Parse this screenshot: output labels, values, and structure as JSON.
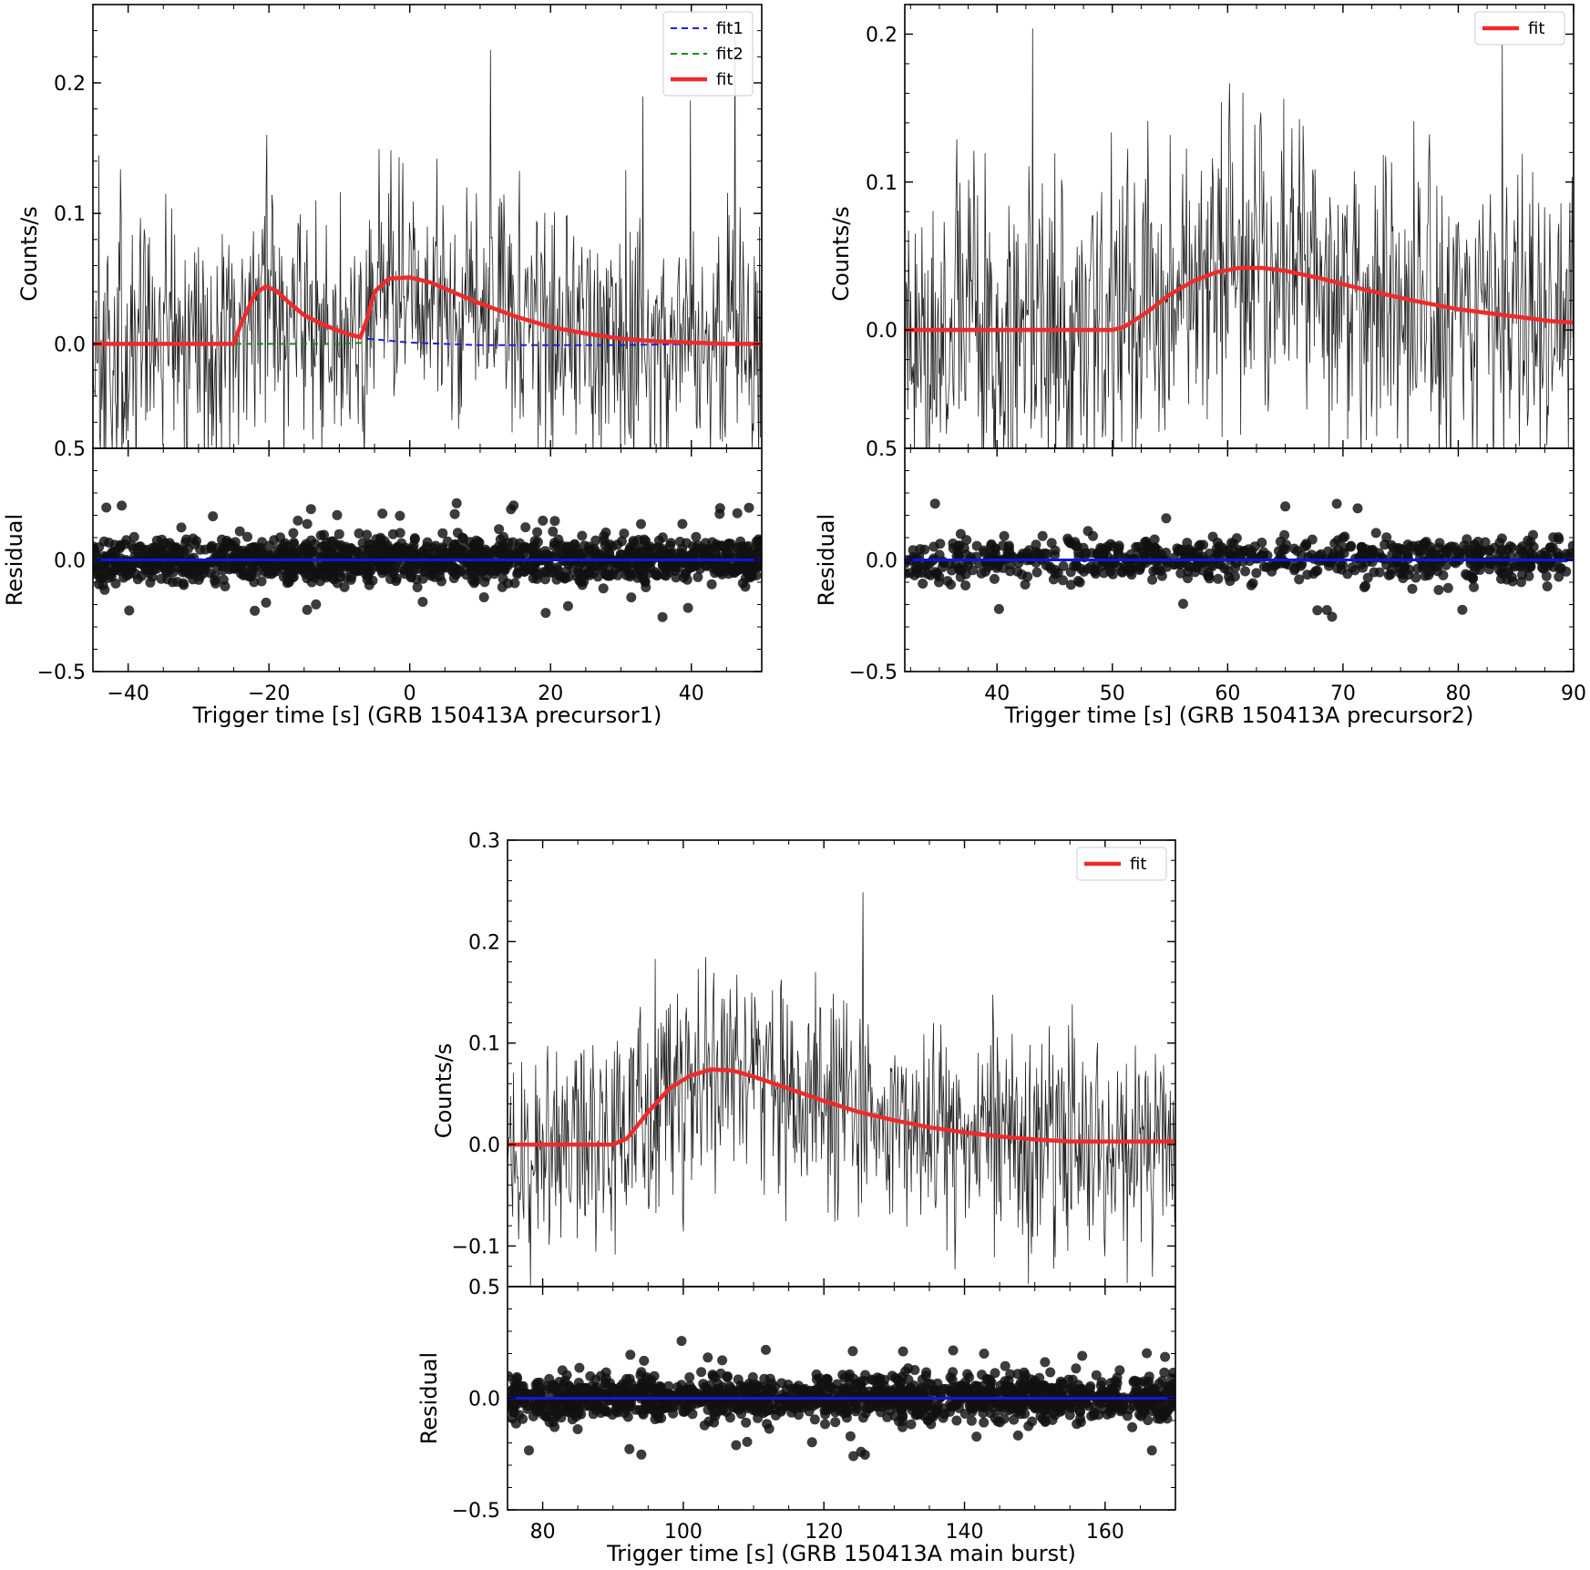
{
  "chart_data": [
    {
      "type": "line",
      "id": "precursor1",
      "xlabel": "Trigger time [s] (GRB 150413A precursor1)",
      "ylabel": "Counts/s",
      "residual_label": "Residual",
      "xlim": [
        -45,
        50
      ],
      "ylim": [
        -0.08,
        0.26
      ],
      "residual_ylim": [
        -0.5,
        0.5
      ],
      "x_ticks": [
        -40,
        -20,
        0,
        20,
        40
      ],
      "x_tick_labels": [
        "−40",
        "−20",
        "0",
        "20",
        "40"
      ],
      "y_ticks": [
        0.0,
        0.1,
        0.2
      ],
      "y_tick_labels": [
        "0.0",
        "0.1",
        "0.2"
      ],
      "y_bottom_label": "0.5",
      "residual_ticks": [
        0.0,
        -0.5
      ],
      "residual_tick_labels": [
        "0.0",
        "−0.5"
      ],
      "legend": {
        "position": "top-right",
        "entries": [
          "fit1",
          "fit2",
          "fit"
        ]
      },
      "noise": {
        "amplitude": 0.07,
        "spike_max": 0.25
      },
      "series": [
        {
          "name": "fit1",
          "style": "dashed",
          "color": "#1f1fe0",
          "x": [
            -6,
            0,
            10,
            20,
            30,
            40,
            50
          ],
          "y": [
            0.004,
            0.001,
            -0.001,
            -0.001,
            -0.001,
            0.0,
            0.0
          ]
        },
        {
          "name": "fit2",
          "style": "dashed",
          "color": "#1a8a1a",
          "x": [
            -45,
            -25,
            -20,
            -15,
            -10,
            -6
          ],
          "y": [
            0.0,
            0.0,
            0.0,
            0.0,
            0.0,
            0.001
          ]
        },
        {
          "name": "fit",
          "style": "solid",
          "color": "#ee2b2b",
          "x": [
            -45,
            -25,
            -24,
            -22,
            -20.5,
            -19,
            -17,
            -15,
            -12,
            -9,
            -7,
            -6,
            -5,
            -3,
            0,
            3,
            6,
            10,
            15,
            20,
            25,
            30,
            35,
            40,
            45,
            50
          ],
          "y": [
            0.0,
            0.0,
            0.015,
            0.038,
            0.044,
            0.041,
            0.031,
            0.022,
            0.014,
            0.008,
            0.005,
            0.02,
            0.04,
            0.05,
            0.051,
            0.047,
            0.04,
            0.031,
            0.021,
            0.013,
            0.008,
            0.004,
            0.002,
            0.001,
            0.0,
            0.0
          ]
        },
        {
          "name": "residual-zero",
          "style": "solid",
          "color": "#1515e6",
          "x": [
            -45,
            50
          ],
          "y": [
            0.0,
            0.0
          ]
        }
      ]
    },
    {
      "type": "line",
      "id": "precursor2",
      "xlabel": "Trigger time [s] (GRB 150413A precursor2)",
      "ylabel": "Counts/s",
      "residual_label": "Residual",
      "xlim": [
        32,
        90
      ],
      "ylim": [
        -0.08,
        0.22
      ],
      "residual_ylim": [
        -0.5,
        0.5
      ],
      "x_ticks": [
        40,
        50,
        60,
        70,
        80,
        90
      ],
      "x_tick_labels": [
        "40",
        "50",
        "60",
        "70",
        "80",
        "90"
      ],
      "y_ticks": [
        0.0,
        0.1,
        0.2
      ],
      "y_tick_labels": [
        "0.0",
        "0.1",
        "0.2"
      ],
      "y_bottom_label": "0.5",
      "residual_ticks": [
        0.0,
        -0.5
      ],
      "residual_tick_labels": [
        "0.0",
        "−0.5"
      ],
      "legend": {
        "position": "top-right",
        "entries": [
          "fit"
        ]
      },
      "noise": {
        "amplitude": 0.075,
        "spike_max": 0.22
      },
      "series": [
        {
          "name": "fit",
          "style": "solid",
          "color": "#ee2b2b",
          "x": [
            32,
            40,
            50,
            51,
            53,
            55,
            57,
            59,
            61,
            63,
            65,
            68,
            72,
            76,
            80,
            84,
            88,
            90
          ],
          "y": [
            0.0,
            0.0,
            0.0,
            0.002,
            0.012,
            0.024,
            0.033,
            0.039,
            0.042,
            0.042,
            0.04,
            0.035,
            0.027,
            0.02,
            0.014,
            0.01,
            0.006,
            0.005
          ]
        },
        {
          "name": "residual-zero",
          "style": "solid",
          "color": "#1515e6",
          "x": [
            32,
            90
          ],
          "y": [
            0.0,
            0.0
          ]
        }
      ]
    },
    {
      "type": "line",
      "id": "main-burst",
      "xlabel": "Trigger time [s] (GRB 150413A main burst)",
      "ylabel": "Counts/s",
      "residual_label": "Residual",
      "xlim": [
        75,
        170
      ],
      "ylim": [
        -0.14,
        0.3
      ],
      "residual_ylim": [
        -0.5,
        0.5
      ],
      "x_ticks": [
        80,
        100,
        120,
        140,
        160
      ],
      "x_tick_labels": [
        "80",
        "100",
        "120",
        "140",
        "160"
      ],
      "y_ticks": [
        -0.1,
        0.0,
        0.1,
        0.2,
        0.3
      ],
      "y_tick_labels": [
        "−0.1",
        "0.0",
        "0.1",
        "0.2",
        "0.3"
      ],
      "y_bottom_label": "0.5",
      "residual_ticks": [
        0.0,
        -0.5
      ],
      "residual_tick_labels": [
        "0.0",
        "−0.5"
      ],
      "legend": {
        "position": "top-right",
        "entries": [
          "fit"
        ]
      },
      "noise": {
        "amplitude": 0.08,
        "spike_max": 0.3
      },
      "series": [
        {
          "name": "fit",
          "style": "solid",
          "color": "#ee2b2b",
          "x": [
            75,
            85,
            90,
            92,
            95,
            98,
            101,
            104,
            107,
            110,
            115,
            120,
            125,
            130,
            135,
            140,
            145,
            150,
            155,
            160,
            165,
            170
          ],
          "y": [
            0.0,
            0.0,
            0.0,
            0.006,
            0.032,
            0.055,
            0.068,
            0.074,
            0.073,
            0.067,
            0.055,
            0.043,
            0.032,
            0.024,
            0.017,
            0.012,
            0.008,
            0.005,
            0.003,
            0.003,
            0.003,
            0.003
          ]
        },
        {
          "name": "residual-zero",
          "style": "solid",
          "color": "#1515e6",
          "x": [
            75,
            170
          ],
          "y": [
            0.0,
            0.0
          ]
        }
      ]
    }
  ]
}
